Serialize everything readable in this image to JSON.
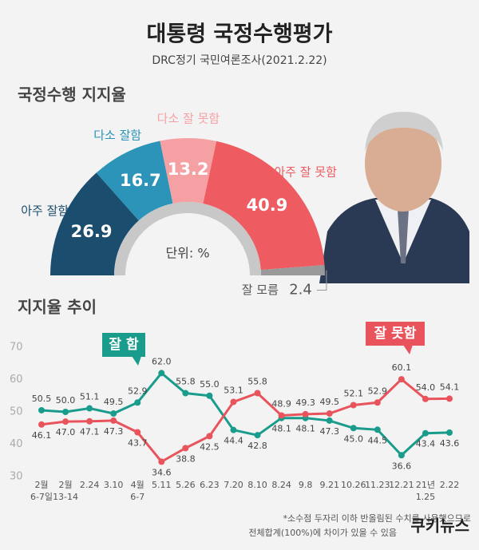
{
  "title": "대통령 국정수행평가",
  "subtitle": "DRC정기 국민여론조사(2021.2.22)",
  "footnote": [
    "*소수점 두자리 이하 반올림된 수치를 사용했으므로",
    "전체합계(100%)에 차이가 있을 수 있음"
  ],
  "logo": "쿠키뉴스",
  "chart_data": [
    {
      "type": "pie",
      "title": "국정수행 지지율",
      "unit_label": "단위: %",
      "categories": [
        "아주 잘함",
        "다소 잘함",
        "다소 잘 못함",
        "아주 잘 못함",
        "잘 모름"
      ],
      "values": [
        26.9,
        16.7,
        13.2,
        40.9,
        2.4
      ],
      "colors": [
        "#1b4d6e",
        "#2b94b8",
        "#f5a1a4",
        "#ee5b60",
        "#9a9a9a"
      ]
    },
    {
      "type": "line",
      "title": "지지율 추이",
      "categories": [
        "2월\n6-7일",
        "2월\n13-14",
        "2.24",
        "3.10",
        "4월\n6-7",
        "5.11",
        "5.26",
        "6.23",
        "7.20",
        "8.10",
        "8.24",
        "9.8",
        "9.21",
        "10.26",
        "11.23",
        "12.21",
        "21년\n1.25",
        "2.22"
      ],
      "series": [
        {
          "name": "잘 함",
          "color": "#1a9c8c",
          "values": [
            50.5,
            50.0,
            51.1,
            49.5,
            52.9,
            62.0,
            55.8,
            55.0,
            44.4,
            42.8,
            48.1,
            48.1,
            47.3,
            45.0,
            44.5,
            36.6,
            43.4,
            43.6
          ],
          "value_labels": [
            "50.5",
            "50.0",
            "51.1",
            "49.5",
            "52.9",
            "62.0",
            "55.8",
            "55.0",
            "44.4",
            "42.8",
            "48.1",
            "48.1",
            "47.3",
            "45.0",
            "44.5",
            "36.6",
            "43.4",
            "43.6"
          ]
        },
        {
          "name": "잘 못함",
          "color": "#e9545c",
          "values": [
            46.1,
            47.0,
            47.1,
            47.3,
            43.7,
            34.6,
            38.8,
            42.5,
            53.1,
            55.8,
            48.9,
            49.3,
            49.5,
            52.1,
            52.9,
            60.1,
            54.0,
            54.1
          ],
          "value_labels": [
            "46.1",
            "47.0",
            "47.1",
            "47.3",
            "43.7",
            "34.6",
            "38.8",
            "42.5",
            "53.1",
            "55.8",
            "48.9",
            "49.3",
            "49.5",
            "52.1",
            "52.9",
            "60.1",
            "54.0",
            "54.1"
          ]
        }
      ],
      "ylim": [
        30,
        70
      ],
      "yticks": [
        30,
        40,
        50,
        60,
        70
      ]
    }
  ]
}
